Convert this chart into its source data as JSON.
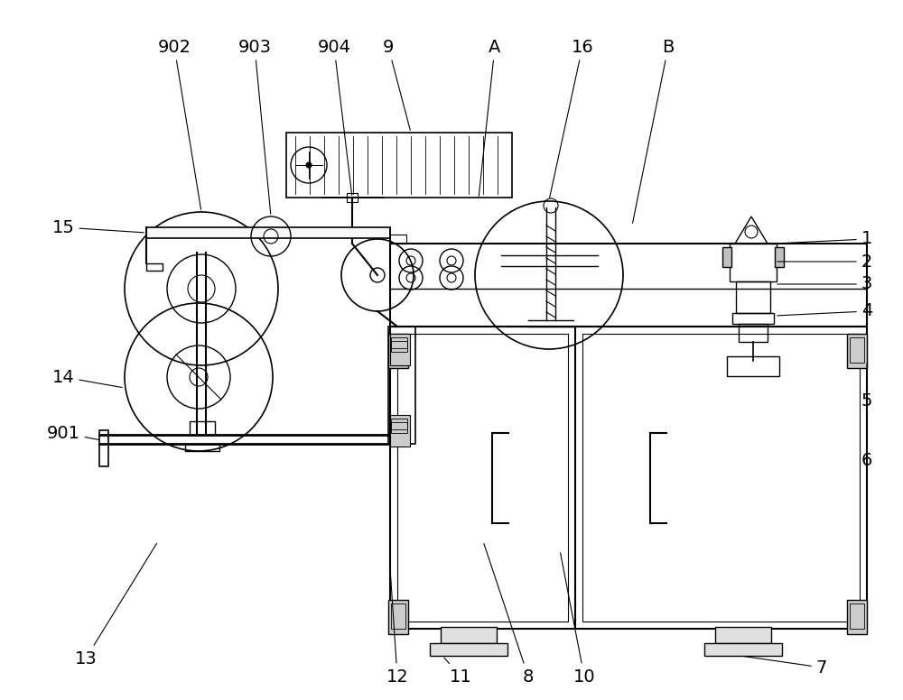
{
  "bg_color": "#ffffff",
  "line_color": "#000000",
  "fig_width": 10.0,
  "fig_height": 7.76,
  "lw": 1.0
}
